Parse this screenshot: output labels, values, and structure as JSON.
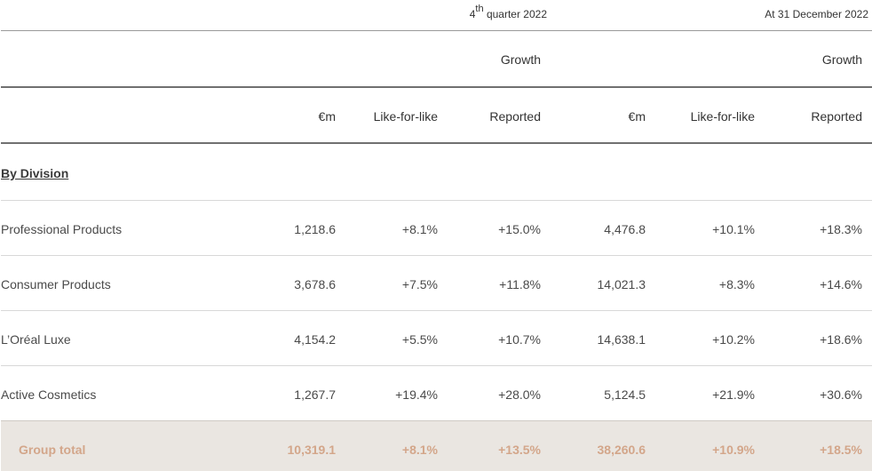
{
  "header": {
    "q4_sup": "th",
    "q4_prefix": "4",
    "q4_suffix": " quarter 2022",
    "year_label": "At 31 December 2022",
    "growth_label": "Growth",
    "columns": [
      "€m",
      "Like-for-like",
      "Reported",
      "€m",
      "Like-for-like",
      "Reported"
    ]
  },
  "section_title": "By Division",
  "rows": [
    {
      "label": "Professional Products",
      "values": [
        "1,218.6",
        "+8.1%",
        "+15.0%",
        "4,476.8",
        "+10.1%",
        "+18.3%"
      ]
    },
    {
      "label": "Consumer Products",
      "values": [
        "3,678.6",
        "+7.5%",
        "+11.8%",
        "14,021.3",
        "+8.3%",
        "+14.6%"
      ]
    },
    {
      "label": "L’Oréal Luxe",
      "values": [
        "4,154.2",
        "+5.5%",
        "+10.7%",
        "14,638.1",
        "+10.2%",
        "+18.6%"
      ]
    },
    {
      "label": "Active Cosmetics",
      "values": [
        "1,267.7",
        "+19.4%",
        "+28.0%",
        "5,124.5",
        "+21.9%",
        "+30.6%"
      ]
    }
  ],
  "total": {
    "label": "Group total",
    "values": [
      "10,319.1",
      "+8.1%",
      "+13.5%",
      "38,260.6",
      "+10.9%",
      "+18.5%"
    ]
  }
}
